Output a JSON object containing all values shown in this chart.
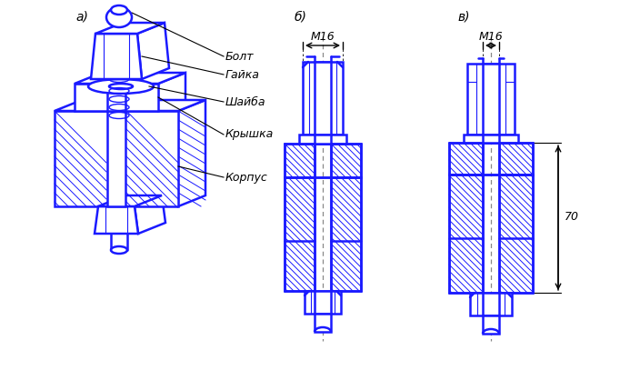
{
  "title_a": "а)",
  "title_b": "б)",
  "title_v": "в)",
  "labels": [
    "Болт",
    "Гайка",
    "Шайба",
    "Крышка",
    "Корпус"
  ],
  "dim_m16": "М16",
  "dim_70": "70",
  "blue": "#1a1aff",
  "black": "#000000",
  "gray": "#888888",
  "bg": "#ffffff",
  "lw_main": 1.8,
  "lw_thin": 0.8,
  "lw_hatch": 0.7
}
